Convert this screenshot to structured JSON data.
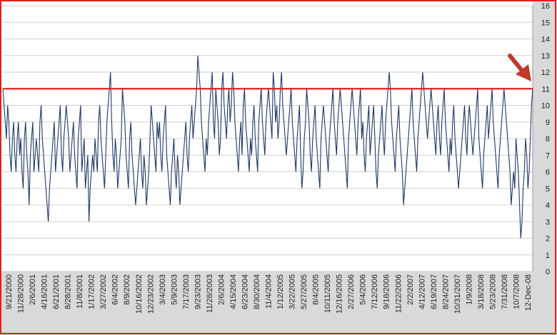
{
  "chart_data": {
    "type": "line",
    "title": "",
    "xlabel": "",
    "ylabel": "",
    "ylim": [
      0,
      16
    ],
    "yticks": [
      0,
      1,
      2,
      3,
      4,
      5,
      6,
      7,
      8,
      9,
      10,
      11,
      12,
      13,
      14,
      15,
      16
    ],
    "grid": "horizontal",
    "legend": "none",
    "x_tick_labels": [
      "9/21/2000",
      "11/28/2000",
      "2/6/2001",
      "4/16/2001",
      "6/21/2001",
      "8/28/2001",
      "11/8/2001",
      "1/17/2002",
      "3/27/2002",
      "6/4/2002",
      "8/9/2002",
      "10/16/2002",
      "12/23/2002",
      "3/4/2003",
      "5/9/2003",
      "7/17/2003",
      "9/23/2003",
      "11/28/2003",
      "2/6/2004",
      "4/15/2004",
      "6/23/2004",
      "8/30/2004",
      "11/4/2004",
      "1/12/2005",
      "3/22/2005",
      "5/27/2005",
      "8/4/2005",
      "10/11/2005",
      "12/16/2005",
      "2/27/2006",
      "5/4/2006",
      "7/12/2006",
      "9/18/2006",
      "11/22/2006",
      "2/2/2007",
      "4/12/2007",
      "6/19/2007",
      "8/24/2007",
      "10/31/2007",
      "1/9/2008",
      "3/18/2008",
      "5/23/2008",
      "7/31/2008",
      "10/7/2008",
      "12-Dec-08"
    ],
    "series": [
      {
        "name": "",
        "color": "#1f3864",
        "values": [
          11,
          10,
          9,
          8,
          10,
          9,
          7,
          6,
          8,
          9,
          7,
          6,
          8,
          9,
          7,
          8,
          6,
          5,
          8,
          9,
          7,
          6,
          4,
          7,
          8,
          9,
          6,
          7,
          8,
          7,
          6,
          9,
          10,
          8,
          7,
          6,
          5,
          4,
          3,
          5,
          6,
          7,
          8,
          9,
          6,
          7,
          8,
          9,
          10,
          7,
          6,
          8,
          9,
          10,
          9,
          8,
          6,
          7,
          8,
          9,
          7,
          6,
          5,
          8,
          9,
          10,
          6,
          7,
          8,
          5,
          6,
          7,
          3,
          5,
          6,
          7,
          6,
          8,
          7,
          6,
          9,
          10,
          8,
          7,
          6,
          5,
          7,
          9,
          10,
          11,
          12,
          9,
          7,
          6,
          8,
          7,
          5,
          6,
          7,
          8,
          11,
          10,
          9,
          7,
          6,
          5,
          8,
          9,
          7,
          6,
          5,
          4,
          5,
          6,
          7,
          8,
          6,
          5,
          7,
          6,
          4,
          5,
          6,
          8,
          10,
          9,
          8,
          7,
          6,
          9,
          8,
          9,
          7,
          6,
          8,
          9,
          10,
          7,
          6,
          5,
          4,
          6,
          7,
          8,
          6,
          5,
          7,
          6,
          4,
          5,
          6,
          7,
          8,
          9,
          7,
          6,
          8,
          9,
          10,
          8,
          9,
          10,
          11,
          13,
          12,
          11,
          9,
          8,
          7,
          6,
          8,
          7,
          9,
          10,
          11,
          12,
          9,
          8,
          11,
          10,
          9,
          7,
          8,
          11,
          12,
          10,
          9,
          8,
          10,
          11,
          9,
          10,
          12,
          11,
          9,
          8,
          7,
          6,
          8,
          9,
          7,
          10,
          11,
          9,
          8,
          7,
          6,
          8,
          7,
          9,
          10,
          8,
          7,
          6,
          9,
          10,
          11,
          9,
          8,
          7,
          9,
          10,
          11,
          10,
          9,
          8,
          12,
          11,
          9,
          10,
          8,
          9,
          11,
          12,
          10,
          9,
          8,
          7,
          8,
          9,
          10,
          11,
          9,
          8,
          7,
          6,
          8,
          9,
          10,
          7,
          5,
          6,
          8,
          9,
          11,
          10,
          9,
          7,
          6,
          8,
          9,
          10,
          8,
          7,
          6,
          5,
          8,
          9,
          10,
          9,
          8,
          7,
          6,
          8,
          9,
          10,
          11,
          9,
          8,
          7,
          9,
          10,
          11,
          10,
          9,
          8,
          7,
          6,
          5,
          8,
          9,
          10,
          11,
          10,
          9,
          8,
          7,
          9,
          10,
          11,
          8,
          9,
          7,
          6,
          8,
          9,
          10,
          7,
          8,
          9,
          10,
          8,
          6,
          5,
          7,
          8,
          9,
          10,
          8,
          7,
          9,
          10,
          11,
          12,
          11,
          9,
          8,
          7,
          6,
          8,
          9,
          10,
          8,
          7,
          6,
          4,
          5,
          6,
          7,
          8,
          9,
          10,
          11,
          9,
          8,
          7,
          6,
          8,
          9,
          10,
          11,
          12,
          11,
          10,
          9,
          8,
          9,
          10,
          11,
          10,
          9,
          8,
          7,
          9,
          10,
          8,
          7,
          9,
          10,
          11,
          9,
          8,
          7,
          6,
          8,
          7,
          9,
          10,
          8,
          7,
          6,
          5,
          6,
          7,
          8,
          9,
          10,
          8,
          7,
          9,
          10,
          9,
          8,
          7,
          8,
          9,
          10,
          11,
          8,
          7,
          6,
          5,
          7,
          8,
          9,
          10,
          8,
          9,
          10,
          11,
          9,
          8,
          7,
          6,
          5,
          7,
          8,
          9,
          10,
          11,
          10,
          9,
          8,
          7,
          6,
          4,
          5,
          6,
          5,
          8,
          7,
          6,
          4,
          2,
          3,
          5,
          6,
          8,
          7,
          5,
          6,
          8,
          10,
          11
        ]
      }
    ],
    "reference_line": {
      "value": 11,
      "color": "#e02020"
    },
    "annotation": {
      "type": "arrow",
      "color": "#c0392b"
    }
  }
}
